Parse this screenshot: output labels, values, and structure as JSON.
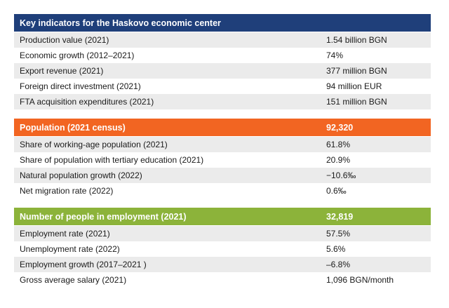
{
  "colors": {
    "section1": "#1f3f7a",
    "section2": "#f26522",
    "section3": "#8cb33a",
    "stripe": "#ebebeb"
  },
  "sections": [
    {
      "title": "Key indicators for the Haskovo economic center",
      "value": "",
      "rows": [
        {
          "label": "Production value (2021)",
          "value": "1.54 billion BGN"
        },
        {
          "label": "Economic growth (2012–2021)",
          "value": "74%"
        },
        {
          "label": "Export revenue (2021)",
          "value": "377 million BGN"
        },
        {
          "label": "Foreign direct investment (2021)",
          "value": "94 million EUR"
        },
        {
          "label": "FTA acquisition expenditures (2021)",
          "value": "151 million BGN"
        }
      ]
    },
    {
      "title": "Population (2021 census)",
      "value": "92,320",
      "rows": [
        {
          "label": "Share of working-age population (2021)",
          "value": "61.8%"
        },
        {
          "label": "Share of population with tertiary education (2021)",
          "value": "20.9%"
        },
        {
          "label": "Natural population growth (2022)",
          "value": "−10.6‰"
        },
        {
          "label": "Net migration rate (2022)",
          "value": "0.6‰"
        }
      ]
    },
    {
      "title": "Number of people in employment (2021)",
      "value": "32,819",
      "rows": [
        {
          "label": "Employment rate (2021)",
          "value": "57.5%"
        },
        {
          "label": "Unemployment rate (2022)",
          "value": "5.6%"
        },
        {
          "label": "Employment growth (2017–2021 )",
          "value": "–6.8%"
        },
        {
          "label": "Gross average salary (2021)",
          "value": "1,096 BGN/month"
        }
      ]
    }
  ]
}
